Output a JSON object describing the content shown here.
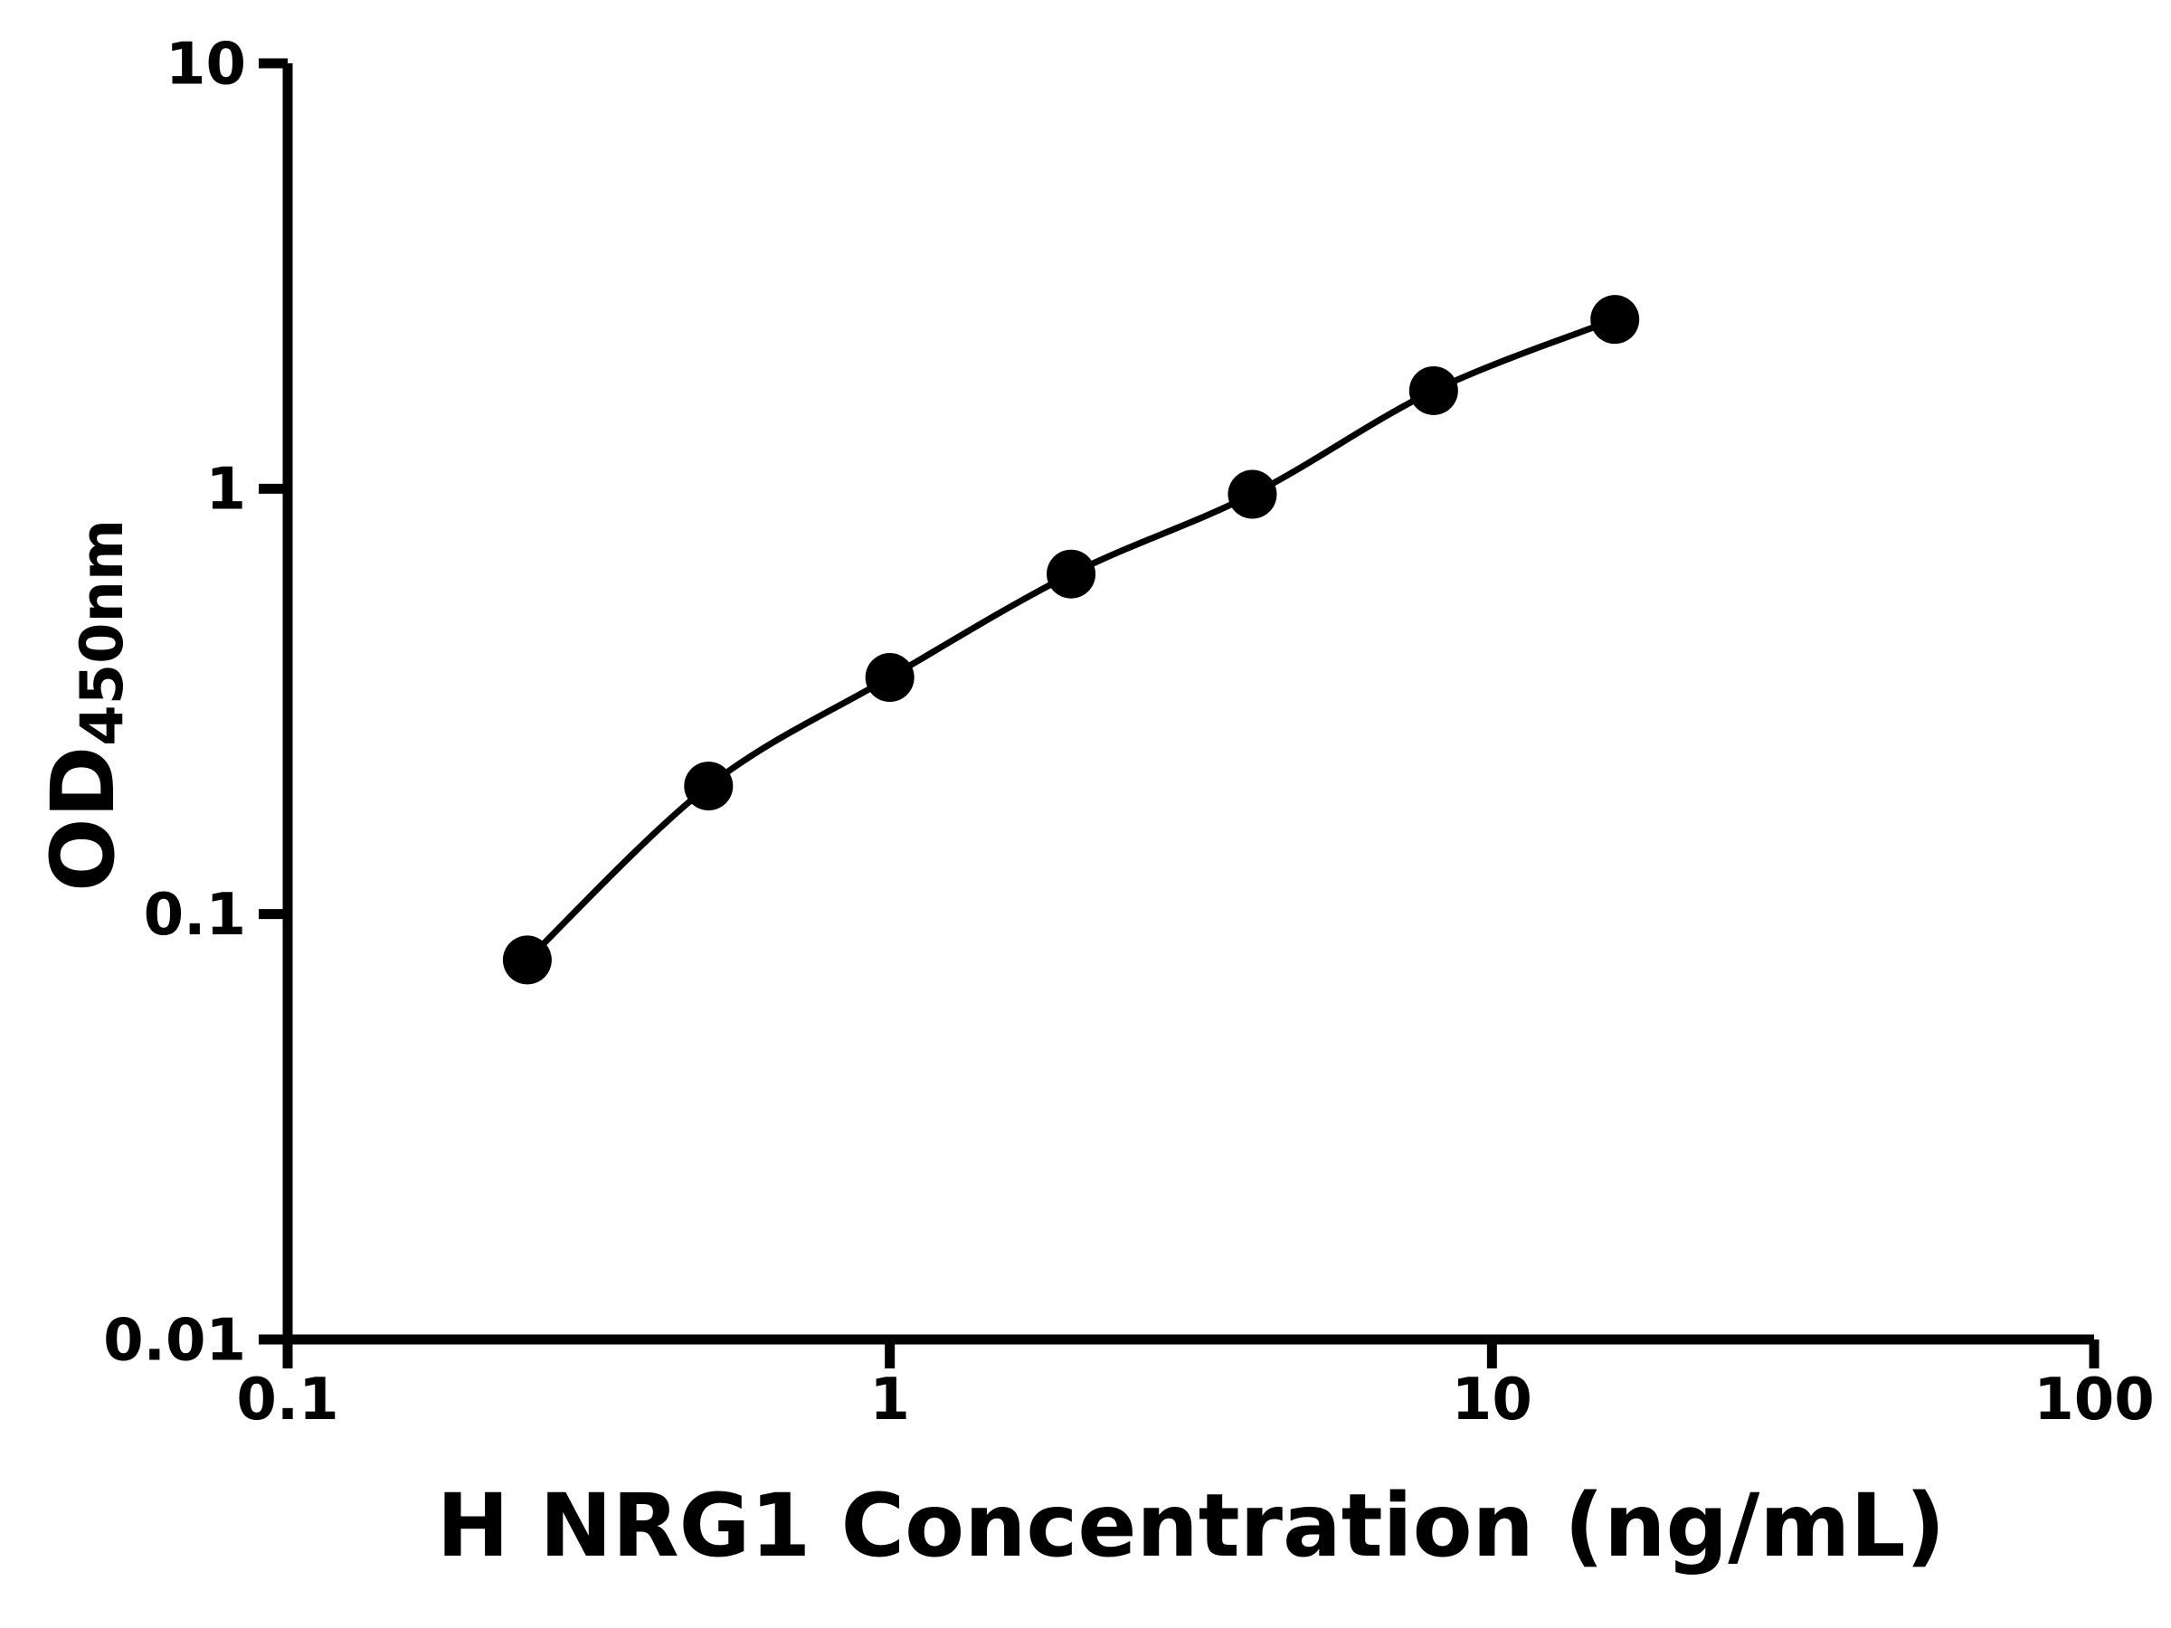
{
  "chart_data": {
    "type": "scatter",
    "title": "",
    "xlabel": "H NRG1 Concentration (ng/mL)",
    "ylabel": "OD",
    "ylabel_subscript": "450nm",
    "xscale": "log",
    "yscale": "log",
    "xlim": [
      0.1,
      100
    ],
    "ylim": [
      0.01,
      10
    ],
    "x_ticks": [
      0.1,
      1,
      10,
      100
    ],
    "x_tick_labels": [
      "0.1",
      "1",
      "10",
      "100"
    ],
    "y_ticks": [
      0.01,
      0.1,
      1,
      10
    ],
    "y_tick_labels": [
      "0.01",
      "0.1",
      "1",
      "10"
    ],
    "series": [
      {
        "x": [
          0.25,
          0.5,
          1,
          2,
          4,
          8,
          16
        ],
        "y": [
          0.078,
          0.2,
          0.36,
          0.63,
          0.97,
          1.7,
          2.5
        ],
        "marker": "circle",
        "marker_color": "#000000",
        "line_color": "#000000"
      }
    ],
    "grid": false,
    "legend": false,
    "background_color": "#ffffff",
    "axis_color": "#000000"
  }
}
